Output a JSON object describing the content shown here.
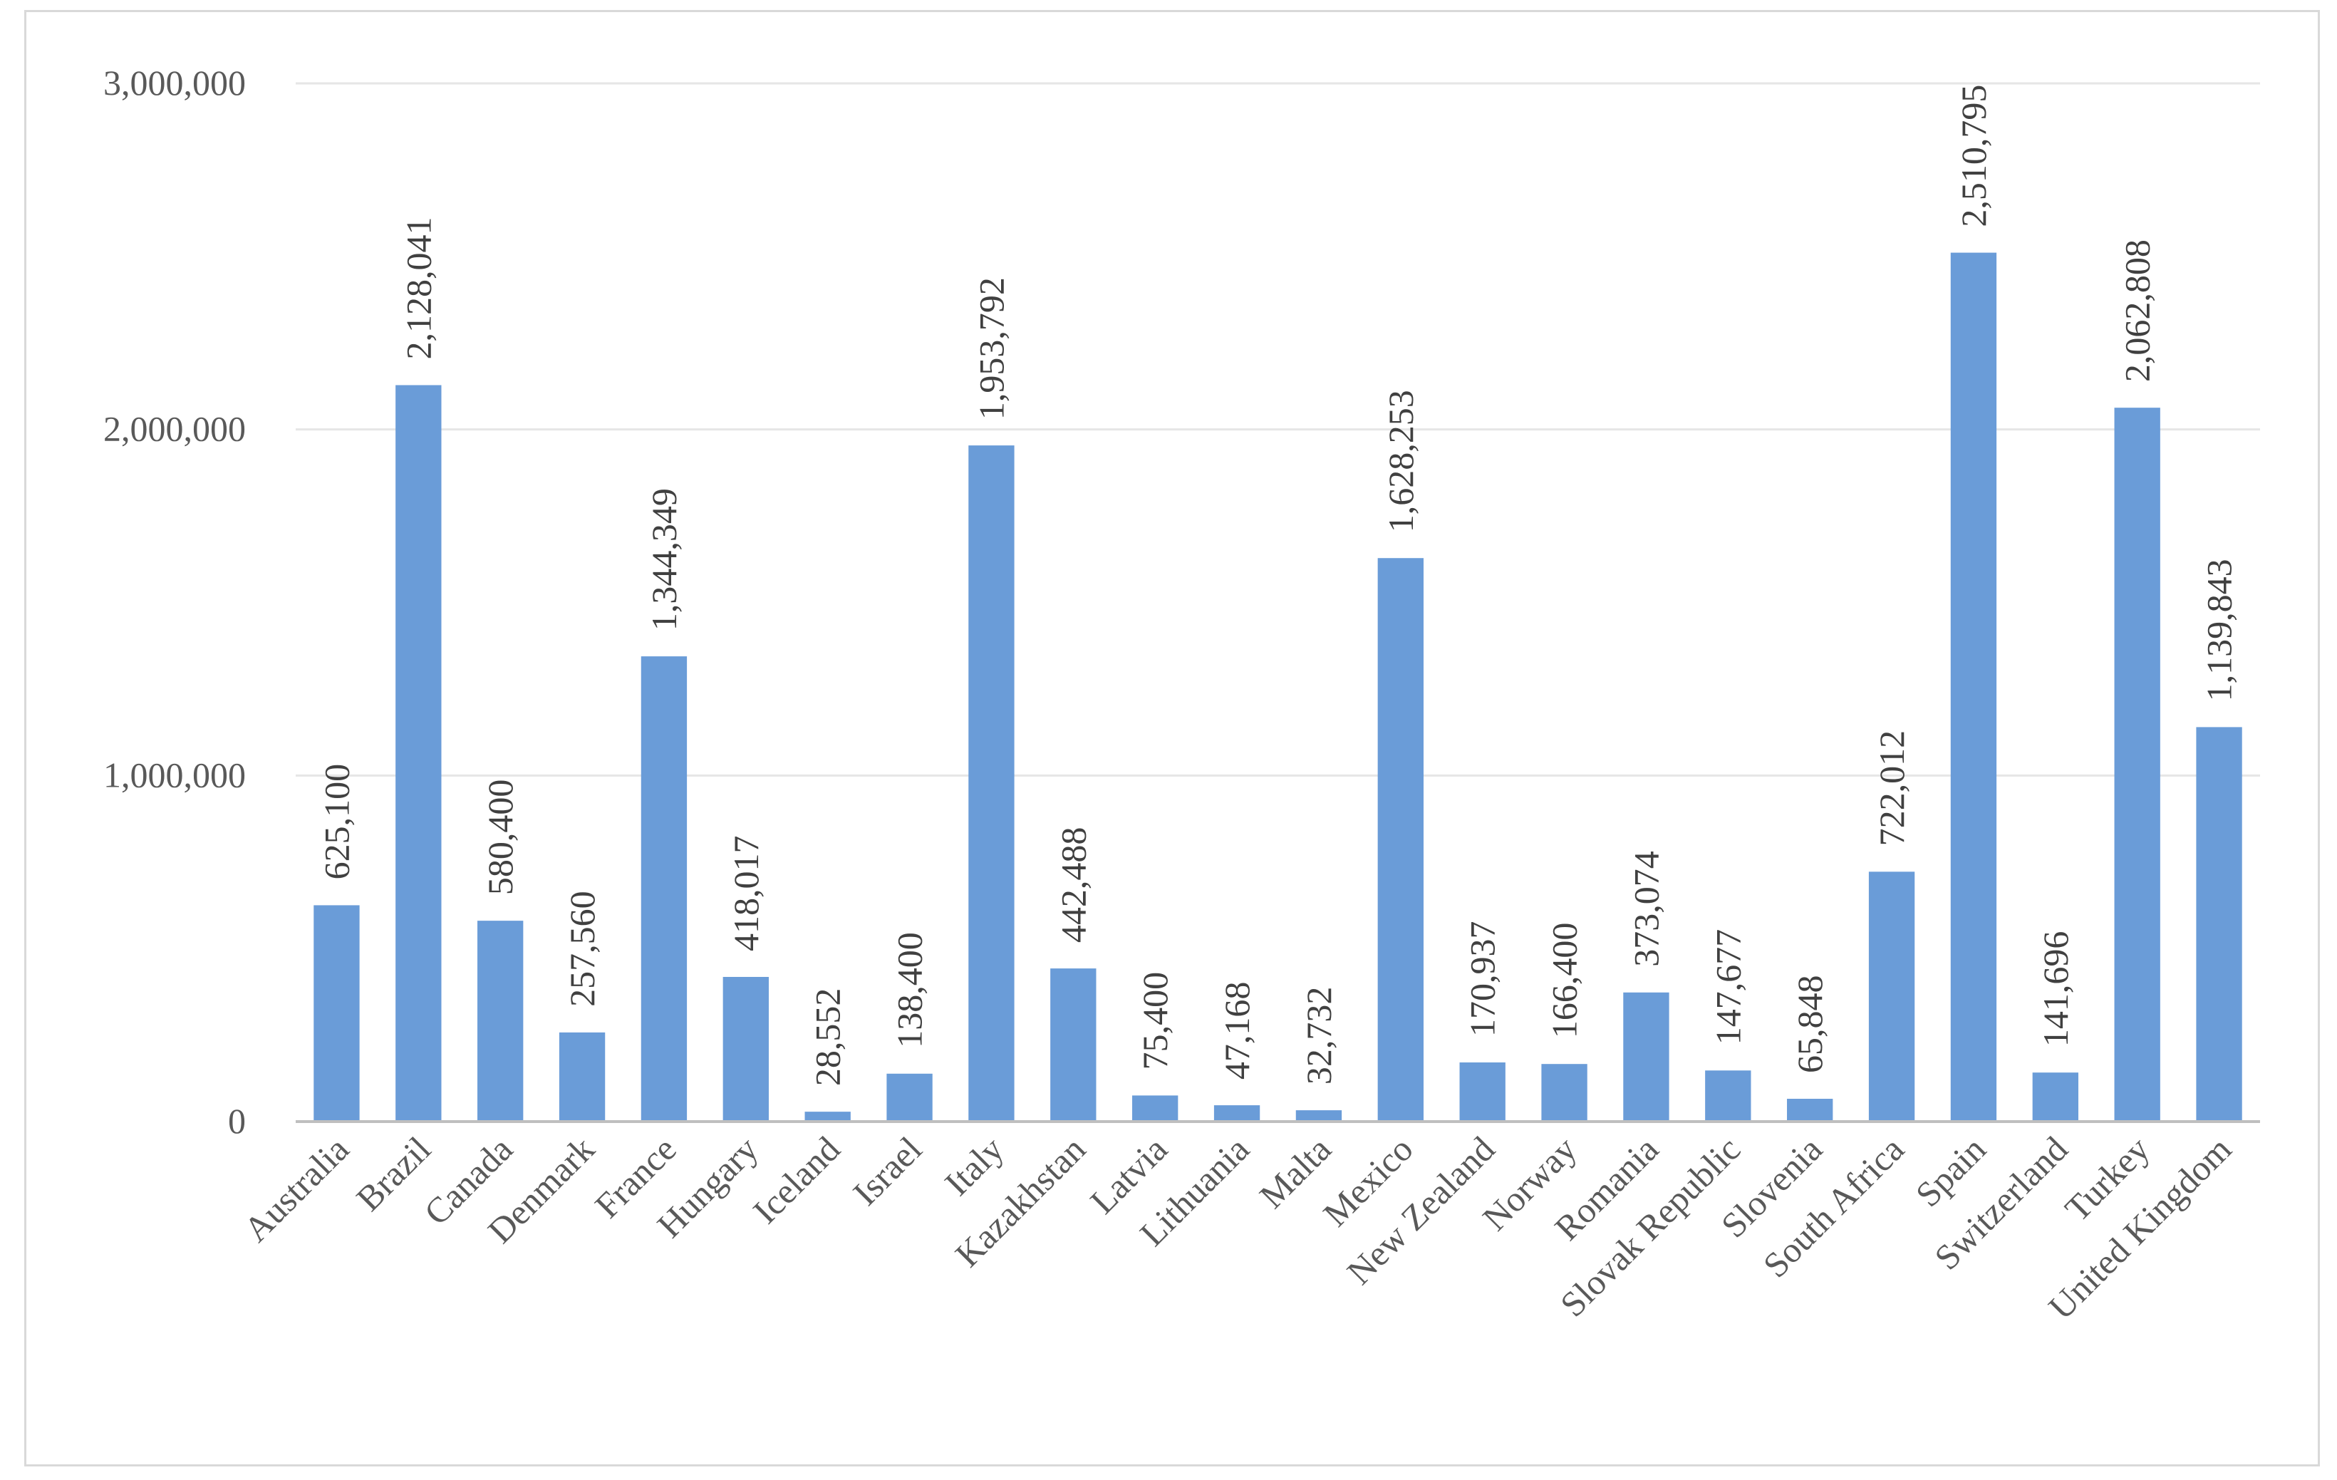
{
  "chart_data": {
    "type": "bar",
    "title": "",
    "xlabel": "",
    "ylabel": "",
    "ylim": [
      0,
      3000000
    ],
    "yticks": [
      0,
      1000000,
      2000000,
      3000000
    ],
    "ytick_labels": [
      "0",
      "1,000,000",
      "2,000,000",
      "3,000,000"
    ],
    "grid": true,
    "legend": "none",
    "bar_color": "#6a9cd8",
    "categories": [
      "Australia",
      "Brazil",
      "Canada",
      "Denmark",
      "France",
      "Hungary",
      "Iceland",
      "Israel",
      "Italy",
      "Kazakhstan",
      "Latvia",
      "Lithuania",
      "Malta",
      "Mexico",
      "New Zealand",
      "Norway",
      "Romania",
      "Slovak Republic",
      "Slovenia",
      "South Africa",
      "Spain",
      "Switzerland",
      "Turkey",
      "United  Kingdom"
    ],
    "values": [
      625100,
      2128041,
      580400,
      257560,
      1344349,
      418017,
      28552,
      138400,
      1953792,
      442488,
      75400,
      47168,
      32732,
      1628253,
      170937,
      166400,
      373074,
      147677,
      65848,
      722012,
      2510795,
      141696,
      2062808,
      1139843
    ],
    "data_labels": [
      "625,100",
      "2,128,041",
      "580,400",
      "257,560",
      "1,344,349",
      "418,017",
      "28,552",
      "138,400",
      "1,953,792",
      "442,488",
      "75,400",
      "47,168",
      "32,732",
      "1,628,253",
      "170,937",
      "166,400",
      "373,074",
      "147,677",
      "65,848",
      "722,012",
      "2,510,795",
      "141,696",
      "2,062,808",
      "1,139,843"
    ]
  }
}
